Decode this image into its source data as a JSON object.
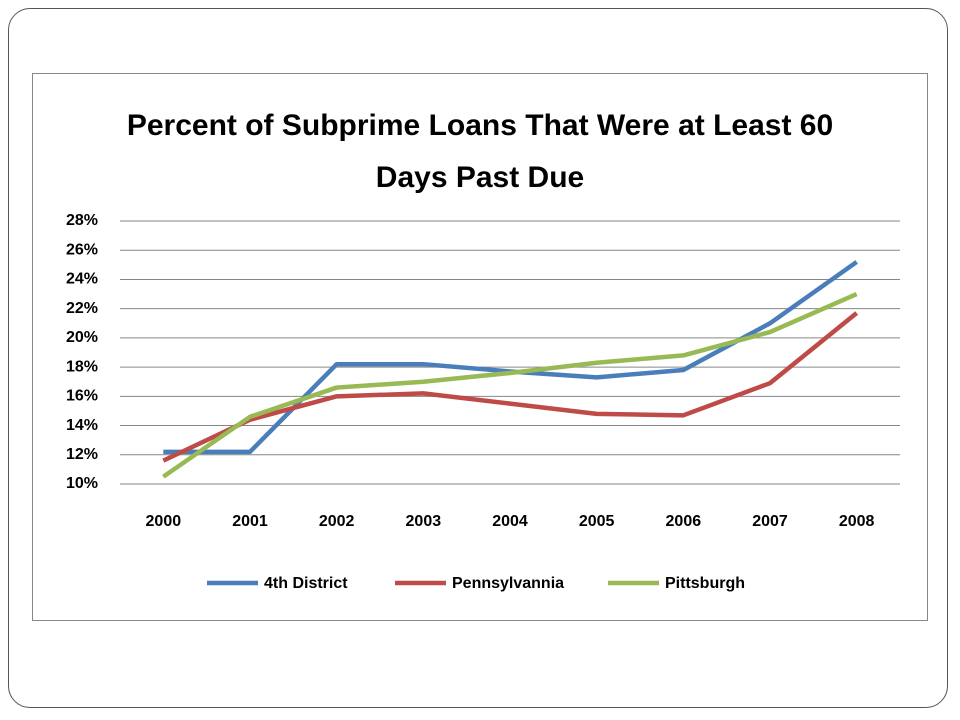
{
  "chart_data": {
    "type": "line",
    "title": "Percent of Subprime Loans That Were at Least 60 Days Past Due",
    "categories": [
      "2000",
      "2001",
      "2002",
      "2003",
      "2004",
      "2005",
      "2006",
      "2007",
      "2008"
    ],
    "series": [
      {
        "name": "4th District",
        "color": "#4a7ebb",
        "values": [
          12.2,
          12.2,
          18.2,
          18.2,
          17.7,
          17.3,
          17.8,
          21.0,
          25.2
        ]
      },
      {
        "name": "Pennsylvannia",
        "color": "#be4b48",
        "values": [
          11.6,
          14.4,
          16.0,
          16.2,
          15.5,
          14.8,
          14.7,
          16.9,
          21.7
        ]
      },
      {
        "name": "Pittsburgh",
        "color": "#98b954",
        "values": [
          10.5,
          14.6,
          16.6,
          17.0,
          17.6,
          18.3,
          18.8,
          20.4,
          23.0
        ]
      }
    ],
    "ylim": [
      10,
      28
    ],
    "yticks": [
      {
        "value": 10,
        "label": "10%"
      },
      {
        "value": 12,
        "label": "12%"
      },
      {
        "value": 14,
        "label": "14%"
      },
      {
        "value": 16,
        "label": "16%"
      },
      {
        "value": 18,
        "label": "18%"
      },
      {
        "value": 20,
        "label": "20%"
      },
      {
        "value": 22,
        "label": "22%"
      },
      {
        "value": 24,
        "label": "24%"
      },
      {
        "value": 26,
        "label": "26%"
      },
      {
        "value": 28,
        "label": "28%"
      }
    ],
    "grid": true,
    "legend": "bottom"
  }
}
